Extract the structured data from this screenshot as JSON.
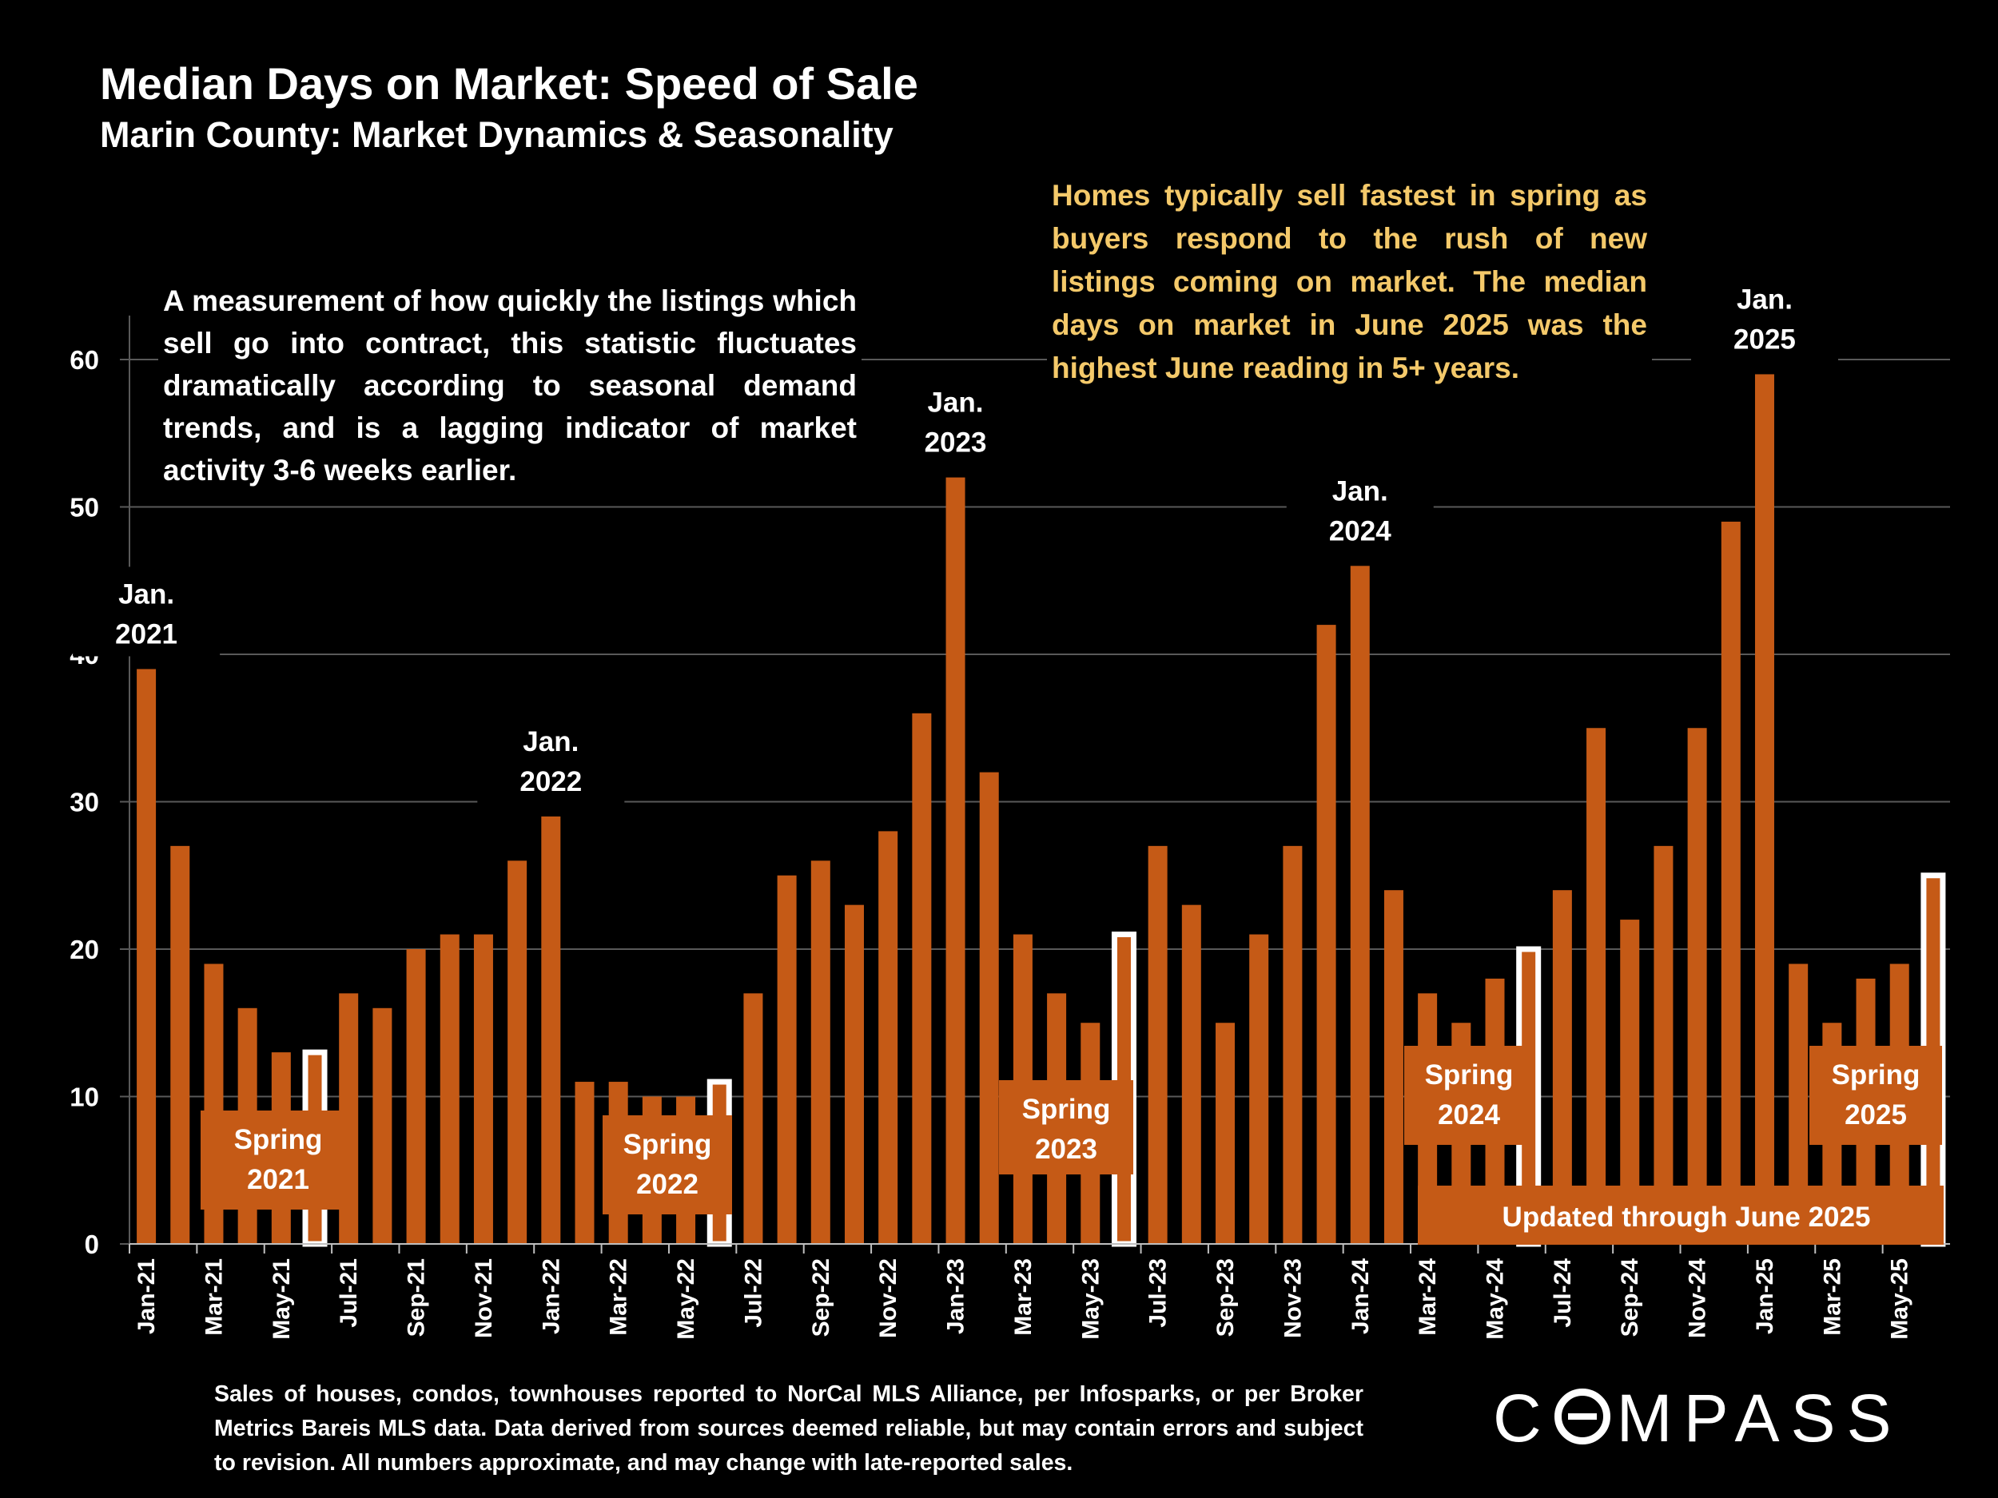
{
  "header": {
    "title": "Median Days on Market:  Speed of Sale",
    "subtitle": "Marin County: Market Dynamics & Seasonality"
  },
  "notes": {
    "left": "A measurement of how quickly the listings which sell go into contract, this statistic fluctuates dramatically according to seasonal demand trends, and is a lagging indicator of market activity 3-6 weeks earlier.",
    "right": "Homes typically sell fastest in spring as buyers respond to the rush of new listings coming on market. The median days on market in June 2025 was the highest June reading in 5+ years."
  },
  "footnote": "Sales of houses, condos, townhouses reported to NorCal MLS Alliance, per Infosparks, or per Broker Metrics Bareis MLS data. Data derived from sources deemed reliable, but may contain errors and subject to revision. All numbers approximate, and may change with late-reported sales.",
  "logo": {
    "before": "C",
    "after": "MPASS",
    "full": "COMPASS"
  },
  "colors": {
    "bar": "#c55a16",
    "highlight": "#ffffff",
    "background": "#000000",
    "grid": "#595959",
    "note": "#f4c96a"
  },
  "chart_data": {
    "type": "bar",
    "title": "Median Days on Market:  Speed of Sale",
    "xlabel": "",
    "ylabel": "",
    "ylim": [
      0,
      63
    ],
    "yticks": [
      0,
      10,
      20,
      30,
      40,
      50,
      60
    ],
    "grid": true,
    "categories": [
      "Jan-21",
      "Feb-21",
      "Mar-21",
      "Apr-21",
      "May-21",
      "Jun-21",
      "Jul-21",
      "Aug-21",
      "Sep-21",
      "Oct-21",
      "Nov-21",
      "Dec-21",
      "Jan-22",
      "Feb-22",
      "Mar-22",
      "Apr-22",
      "May-22",
      "Jun-22",
      "Jul-22",
      "Aug-22",
      "Sep-22",
      "Oct-22",
      "Nov-22",
      "Dec-22",
      "Jan-23",
      "Feb-23",
      "Mar-23",
      "Apr-23",
      "May-23",
      "Jun-23",
      "Jul-23",
      "Aug-23",
      "Sep-23",
      "Oct-23",
      "Nov-23",
      "Dec-23",
      "Jan-24",
      "Feb-24",
      "Mar-24",
      "Apr-24",
      "May-24",
      "Jun-24",
      "Jul-24",
      "Aug-24",
      "Sep-24",
      "Oct-24",
      "Nov-24",
      "Dec-24",
      "Jan-25",
      "Feb-25",
      "Mar-25",
      "Apr-25",
      "May-25",
      "Jun-25"
    ],
    "visible_tick_labels": [
      "Jan-21",
      "Mar-21",
      "May-21",
      "Jul-21",
      "Sep-21",
      "Nov-21",
      "Jan-22",
      "Mar-22",
      "May-22",
      "Jul-22",
      "Sep-22",
      "Nov-22",
      "Jan-23",
      "Mar-23",
      "May-23",
      "Jul-23",
      "Sep-23",
      "Nov-23",
      "Jan-24",
      "Mar-24",
      "May-24",
      "Jul-24",
      "Sep-24",
      "Nov-24",
      "Jan-25",
      "Mar-25",
      "May-25"
    ],
    "values": [
      39,
      27,
      19,
      16,
      13,
      13,
      17,
      16,
      20,
      21,
      21,
      26,
      29,
      11,
      11,
      10,
      10,
      11,
      17,
      25,
      26,
      23,
      28,
      36,
      52,
      32,
      21,
      17,
      15,
      21,
      27,
      23,
      15,
      21,
      27,
      42,
      46,
      24,
      17,
      15,
      18,
      20,
      24,
      35,
      22,
      27,
      35,
      49,
      59,
      19,
      15,
      18,
      19,
      25
    ],
    "highlight_months": [
      "Jun-21",
      "Jun-22",
      "Jun-23",
      "Jun-24",
      "Jun-25"
    ],
    "annotations": [
      {
        "at": "Jan-21",
        "line1": "Jan.",
        "line2": "2021"
      },
      {
        "at": "Jan-22",
        "line1": "Jan.",
        "line2": "2022"
      },
      {
        "at": "Jan-23",
        "line1": "Jan.",
        "line2": "2023"
      },
      {
        "at": "Jan-24",
        "line1": "Jan.",
        "line2": "2024"
      },
      {
        "at": "Jan-25",
        "line1": "Jan.",
        "line2": "2025"
      }
    ],
    "spring_labels": [
      {
        "line1": "Spring",
        "line2": "2021"
      },
      {
        "line1": "Spring",
        "line2": "2022"
      },
      {
        "line1": "Spring",
        "line2": "2023"
      },
      {
        "line1": "Spring",
        "line2": "2024"
      },
      {
        "line1": "Spring",
        "line2": "2025"
      }
    ],
    "update_note": "Updated through June 2025"
  }
}
